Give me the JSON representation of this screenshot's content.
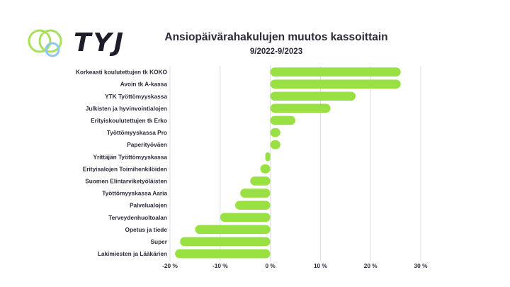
{
  "header": {
    "logo_text": "TYJ",
    "title": "Ansiopäivärahakulujen muutos kassoittain",
    "subtitle": "9/2022-9/2023"
  },
  "colors": {
    "bar": "#99e043",
    "grid": "#dedede",
    "logo_ring_green": "#a8e05a",
    "logo_ring_blue": "#8cc8ee"
  },
  "chart_data": {
    "type": "bar",
    "orientation": "horizontal",
    "title": "Ansiopäivärahakulujen muutos kassoittain",
    "subtitle": "9/2022-9/2023",
    "categories": [
      "Korkeasti koulutettujen tk KOKO",
      "Avoin tk A-kassa",
      "YTK Työttömyyskassa",
      "Julkisten ja hyvinvointialojen",
      "Erityiskoulutettujen tk Erko",
      "Työttömyyskassa Pro",
      "Paperityöväen",
      "Yrittäjän Työttömyyskassa",
      "Erityisalojen Toimihenkilöiden",
      "Suomen Elintarviketyöläisten",
      "Työttömyyskassa Aaria",
      "Palvelualojen",
      "Terveydenhuoltoalan",
      "Opetus ja tiede",
      "Super",
      "Lakimiesten ja Lääkärien"
    ],
    "values": [
      26,
      26,
      17,
      12,
      5,
      2,
      2,
      -1,
      -2,
      -4,
      -6,
      -7,
      -10,
      -15,
      -18,
      -19
    ],
    "xlim": [
      -20,
      30
    ],
    "xticks": [
      -20,
      -10,
      0,
      10,
      20,
      30
    ],
    "xtick_labels": [
      "-20 %",
      "-10 %",
      "0 %",
      "10 %",
      "20 %",
      "30 %"
    ],
    "grid": true,
    "legend": "none"
  }
}
